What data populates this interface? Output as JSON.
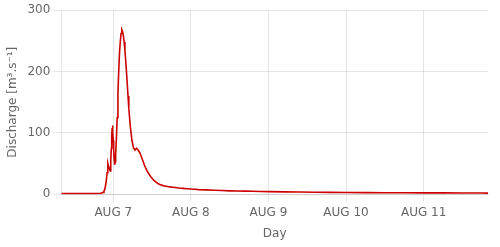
{
  "chart_data": {
    "type": "line",
    "xlabel": "Day",
    "ylabel": "Discharge [m³.s⁻¹]",
    "color": "#cc0000",
    "grid": true,
    "xlim": [
      0.33,
      5.83
    ],
    "ylim": [
      0,
      300
    ],
    "xticks": [
      {
        "value": 1.0,
        "label": "AUG 7"
      },
      {
        "value": 2.0,
        "label": "AUG 8"
      },
      {
        "value": 3.0,
        "label": "AUG 9"
      },
      {
        "value": 4.0,
        "label": "AUG 10"
      },
      {
        "value": 5.0,
        "label": "AUG 11"
      }
    ],
    "yticks": [
      0,
      100,
      200,
      300
    ],
    "x": [
      0.33,
      0.4,
      0.5,
      0.55,
      0.6,
      0.65,
      0.7,
      0.75,
      0.8,
      0.83,
      0.85,
      0.87,
      0.88,
      0.89,
      0.9,
      0.91,
      0.92,
      0.93,
      0.94,
      0.95,
      0.96,
      0.965,
      0.97,
      0.975,
      0.98,
      0.985,
      0.99,
      0.995,
      1.0,
      1.005,
      1.01,
      1.015,
      1.02,
      1.025,
      1.03,
      1.04,
      1.05,
      1.06,
      1.07,
      1.08,
      1.09,
      1.1,
      1.11,
      1.12,
      1.13,
      1.14,
      1.15,
      1.16,
      1.17,
      1.18,
      1.19,
      1.2,
      1.22,
      1.24,
      1.26,
      1.28,
      1.3,
      1.32,
      1.34,
      1.36,
      1.38,
      1.4,
      1.42,
      1.44,
      1.46,
      1.48,
      1.5,
      1.52,
      1.54,
      1.56,
      1.58,
      1.6,
      1.62,
      1.64,
      1.66,
      1.68,
      1.7,
      1.75,
      1.8,
      1.85,
      1.9,
      1.95,
      2.0,
      2.05,
      2.1,
      2.2,
      2.3,
      2.4,
      2.5,
      2.6,
      2.7,
      2.8,
      2.9,
      3.0,
      3.2,
      3.4,
      3.6,
      3.8,
      4.0,
      4.25,
      4.5,
      4.75,
      5.0,
      5.25,
      5.5,
      5.75,
      5.83
    ],
    "values": [
      1,
      1,
      1,
      1,
      1,
      1,
      1,
      1,
      1,
      1,
      2,
      3,
      5,
      8,
      14,
      22,
      35,
      50,
      45,
      42,
      38,
      44,
      55,
      75,
      95,
      108,
      112,
      100,
      88,
      72,
      60,
      52,
      48,
      53,
      65,
      90,
      125,
      165,
      200,
      230,
      248,
      262,
      268,
      265,
      258,
      248,
      235,
      218,
      200,
      180,
      160,
      140,
      110,
      88,
      76,
      72,
      75,
      72,
      68,
      62,
      55,
      48,
      42,
      37,
      33,
      29,
      26,
      23,
      21,
      19,
      17,
      16,
      15,
      14,
      13.5,
      13,
      12.5,
      11.5,
      11,
      10,
      9.5,
      9,
      8.5,
      8,
      7.5,
      7,
      6.5,
      6,
      5.5,
      5.2,
      5,
      4.7,
      4.4,
      4.2,
      3.8,
      3.5,
      3.2,
      3.0,
      2.8,
      2.6,
      2.4,
      2.3,
      2.2,
      2.1,
      2.0,
      1.9,
      1.8
    ]
  }
}
